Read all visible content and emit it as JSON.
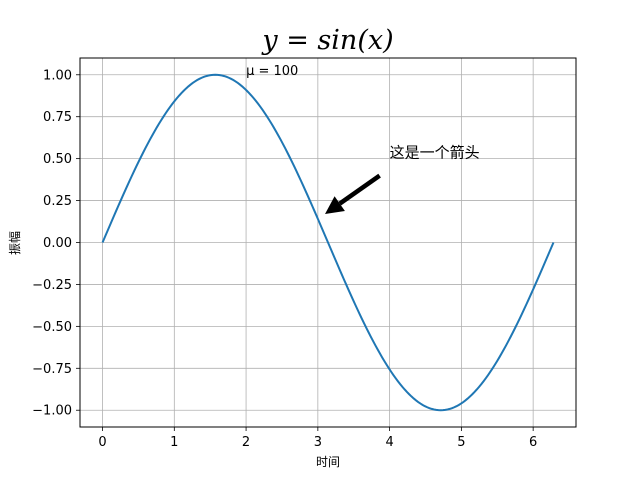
{
  "chart_data": {
    "type": "line",
    "title": "y = sin(x)",
    "xlabel": "时间",
    "ylabel": "振幅",
    "xlim": [
      -0.314,
      6.597
    ],
    "ylim": [
      -1.1,
      1.1
    ],
    "grid": true,
    "x_ticks": [
      "0",
      "1",
      "2",
      "3",
      "4",
      "5",
      "6"
    ],
    "y_ticks": [
      "1.00",
      "0.75",
      "0.50",
      "0.25",
      "0.00",
      "−0.25",
      "−0.50",
      "−0.75",
      "−1.00"
    ],
    "series": [
      {
        "color": "#1f77b4",
        "x": [
          0,
          0.3307,
          0.6614,
          0.9921,
          1.3228,
          1.6535,
          1.9842,
          2.3149,
          2.6456,
          2.9763,
          3.3069,
          3.6376,
          3.9683,
          4.299,
          4.6297,
          4.9604,
          5.2911,
          5.6218,
          5.9525,
          6.2832
        ],
        "y": [
          0,
          0.3247,
          0.6142,
          0.8372,
          0.9694,
          0.9966,
          0.9158,
          0.7357,
          0.4759,
          0.1646,
          -0.1646,
          -0.4759,
          -0.7357,
          -0.9158,
          -0.9966,
          -0.9694,
          -0.8372,
          -0.6142,
          -0.3247,
          0
        ]
      }
    ],
    "annotations": [
      {
        "text": "μ = 100",
        "x": 2.0,
        "y": 1.0
      },
      {
        "text": "这是一个箭头",
        "x": 4.0,
        "y": 0.5,
        "arrow_to": [
          3.1,
          0.17
        ]
      }
    ]
  }
}
